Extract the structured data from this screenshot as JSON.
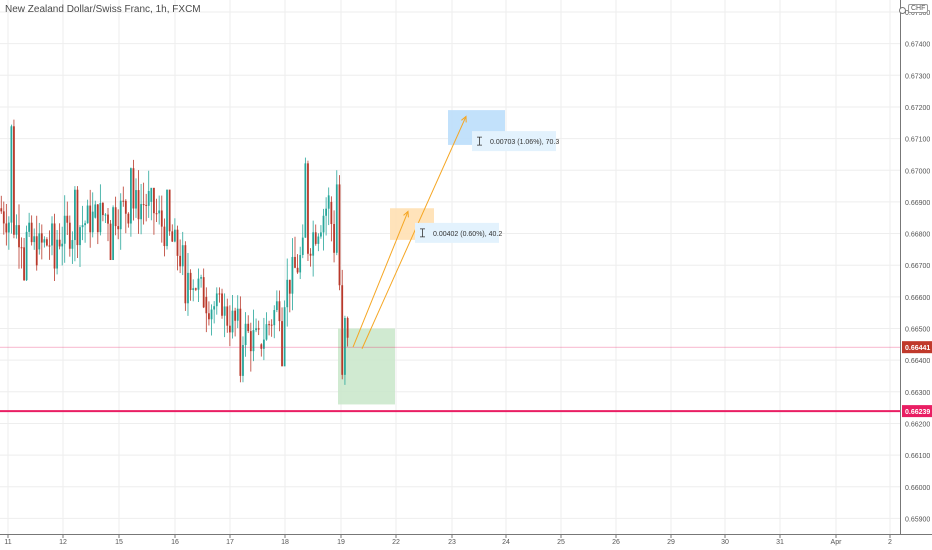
{
  "header": {
    "title": "New Zealand Dollar/Swiss Franc, 1h, FXCM",
    "currency": "CHF"
  },
  "colors": {
    "up": "#26a69a",
    "down": "#b9382a",
    "grid": "#eeeeee",
    "support_line": "#e91e63",
    "price_line": "#e91e63",
    "orange_box": "#ffe0b2",
    "blue_box": "#bbdefb",
    "green_box": "#c8e6c9",
    "label_bg": "#e3f2fd",
    "arrow": "#f5a623"
  },
  "chart_data": {
    "type": "candlestick",
    "title": "New Zealand Dollar/Swiss Franc, 1h, FXCM",
    "x_ticks": [
      "11",
      "12",
      "15",
      "16",
      "17",
      "18",
      "19",
      "22",
      "23",
      "24",
      "25",
      "26",
      "29",
      "30",
      "31",
      "Apr",
      "2"
    ],
    "y_ticks": [
      "0.67500",
      "0.67400",
      "0.67300",
      "0.67200",
      "0.67100",
      "0.67000",
      "0.66900",
      "0.66800",
      "0.66700",
      "0.66600",
      "0.66500",
      "0.66400",
      "0.66300",
      "0.66200",
      "0.66100",
      "0.66000",
      "0.65900"
    ],
    "ylim": [
      0.6585,
      0.6755
    ],
    "price_markers": [
      {
        "label": "0.66441",
        "value": 0.66441
      },
      {
        "label": "0.66239",
        "value": 0.66239
      }
    ],
    "annotations": [
      {
        "text": "0.00402 (0.60%), 40.2",
        "target": 0.6684
      },
      {
        "text": "0.00703 (1.06%), 70.3",
        "target": 0.6713
      }
    ],
    "candles_daily": [
      {
        "day": "11",
        "open": 0.6688,
        "high": 0.6716,
        "low": 0.6665,
        "close": 0.6675
      },
      {
        "day": "12",
        "open": 0.6675,
        "high": 0.6695,
        "low": 0.6665,
        "close": 0.6685
      },
      {
        "day": "15",
        "open": 0.6685,
        "high": 0.6707,
        "low": 0.6672,
        "close": 0.669
      },
      {
        "day": "16",
        "open": 0.669,
        "high": 0.6692,
        "low": 0.665,
        "close": 0.666
      },
      {
        "day": "17",
        "open": 0.666,
        "high": 0.6663,
        "low": 0.6633,
        "close": 0.6645
      },
      {
        "day": "18",
        "open": 0.6645,
        "high": 0.6704,
        "low": 0.664,
        "close": 0.669
      },
      {
        "day": "19",
        "open": 0.669,
        "high": 0.67,
        "low": 0.6628,
        "close": 0.6644
      }
    ]
  }
}
